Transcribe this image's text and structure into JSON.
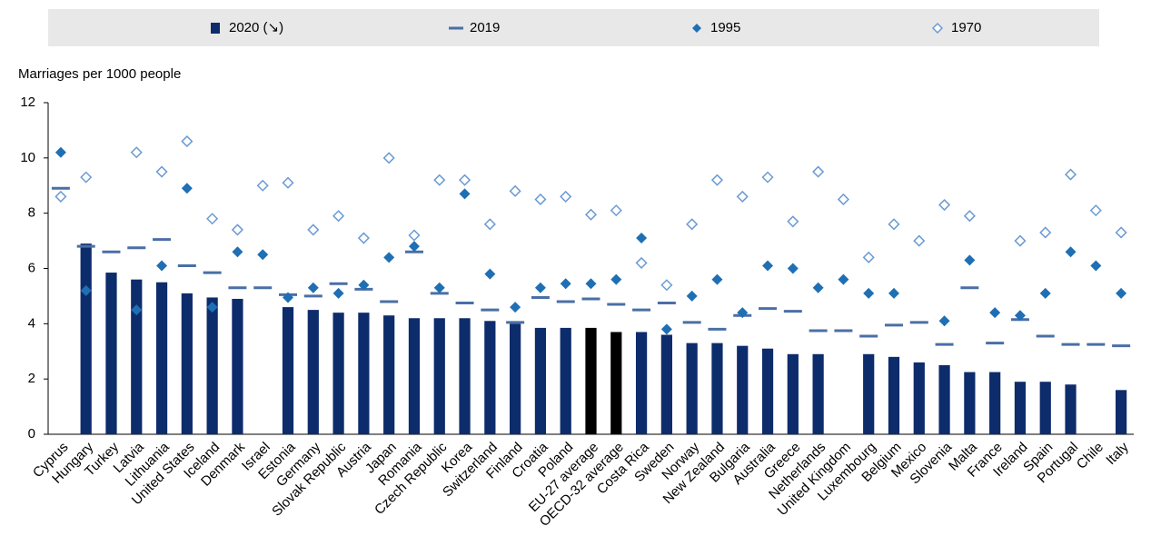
{
  "chart_data": {
    "type": "bar-markers",
    "y_label": "Marriages per 1000 people",
    "categories": [
      "Cyprus",
      "Hungary",
      "Turkey",
      "Latvia",
      "Lithuania",
      "United States",
      "Iceland",
      "Denmark",
      "Israel",
      "Estonia",
      "Germany",
      "Slovak Republic",
      "Austria",
      "Japan",
      "Romania",
      "Czech Republic",
      "Korea",
      "Switzerland",
      "Finland",
      "Croatia",
      "Poland",
      "EU-27 average",
      "OECD-32 average",
      "Costa Rica",
      "Sweden",
      "Norway",
      "New Zealand",
      "Bulgaria",
      "Australia",
      "Greece",
      "Netherlands",
      "United Kingdom",
      "Luxembourg",
      "Belgium",
      "Mexico",
      "Slovenia",
      "Malta",
      "France",
      "Ireland",
      "Spain",
      "Portugal",
      "Chile",
      "Italy"
    ],
    "series": [
      {
        "name": "2020 (↘)",
        "mark": "bar",
        "color": "#0d2c6c",
        "colors": [
          "#0d2c6c",
          "#0d2c6c",
          "#0d2c6c",
          "#0d2c6c",
          "#0d2c6c",
          "#0d2c6c",
          "#0d2c6c",
          "#0d2c6c",
          "#0d2c6c",
          "#0d2c6c",
          "#0d2c6c",
          "#0d2c6c",
          "#0d2c6c",
          "#0d2c6c",
          "#0d2c6c",
          "#0d2c6c",
          "#0d2c6c",
          "#0d2c6c",
          "#0d2c6c",
          "#0d2c6c",
          "#0d2c6c",
          "#000000",
          "#000000",
          "#0d2c6c",
          "#0d2c6c",
          "#0d2c6c",
          "#0d2c6c",
          "#0d2c6c",
          "#0d2c6c",
          "#0d2c6c",
          "#0d2c6c",
          "#0d2c6c",
          "#0d2c6c",
          "#0d2c6c",
          "#0d2c6c",
          "#0d2c6c",
          "#0d2c6c",
          "#0d2c6c",
          "#0d2c6c",
          "#0d2c6c",
          "#0d2c6c",
          "#0d2c6c",
          "#0d2c6c"
        ],
        "values": [
          null,
          6.9,
          5.85,
          5.6,
          5.5,
          5.1,
          4.95,
          4.9,
          null,
          4.6,
          4.5,
          4.4,
          4.4,
          4.3,
          4.2,
          4.2,
          4.2,
          4.1,
          4.0,
          3.85,
          3.85,
          3.85,
          3.7,
          3.7,
          3.6,
          3.3,
          3.3,
          3.2,
          3.1,
          2.9,
          2.9,
          null,
          2.9,
          2.8,
          2.6,
          2.5,
          2.25,
          2.25,
          1.9,
          1.9,
          1.8,
          null,
          1.6
        ]
      },
      {
        "name": "2019",
        "mark": "dash",
        "color": "#4a6fa5",
        "values": [
          8.9,
          6.8,
          6.6,
          6.75,
          7.05,
          6.1,
          5.85,
          5.3,
          5.3,
          5.05,
          5.0,
          5.45,
          5.25,
          4.8,
          6.6,
          5.1,
          4.75,
          4.5,
          4.05,
          4.95,
          4.8,
          4.9,
          4.7,
          4.5,
          4.75,
          4.05,
          3.8,
          4.3,
          4.55,
          4.45,
          3.75,
          3.75,
          3.55,
          3.95,
          4.05,
          3.25,
          5.3,
          3.3,
          4.15,
          3.55,
          3.25,
          3.25,
          3.2
        ]
      },
      {
        "name": "1995",
        "mark": "diamond",
        "color": "#1f6fb4",
        "values": [
          10.2,
          5.2,
          null,
          4.5,
          6.1,
          8.9,
          4.6,
          6.6,
          6.5,
          4.95,
          5.3,
          5.1,
          5.4,
          6.4,
          6.8,
          5.3,
          8.7,
          5.8,
          4.6,
          5.3,
          5.45,
          5.45,
          5.6,
          7.1,
          3.8,
          5.0,
          5.6,
          4.4,
          6.1,
          6.0,
          5.3,
          5.6,
          5.1,
          5.1,
          null,
          4.1,
          6.3,
          4.4,
          4.3,
          5.1,
          6.6,
          6.1,
          5.1
        ]
      },
      {
        "name": "1970",
        "mark": "hollow-diamond",
        "color": "#6b9bd2",
        "values": [
          8.6,
          9.3,
          null,
          10.2,
          9.5,
          10.6,
          7.8,
          7.4,
          9.0,
          9.1,
          7.4,
          7.9,
          7.1,
          10.0,
          7.2,
          9.2,
          9.2,
          7.6,
          8.8,
          8.5,
          8.6,
          7.95,
          8.1,
          6.2,
          5.4,
          7.6,
          9.2,
          8.6,
          9.3,
          7.7,
          9.5,
          8.5,
          6.4,
          7.6,
          7.0,
          8.3,
          7.9,
          null,
          7.0,
          7.3,
          9.4,
          8.1,
          7.3
        ]
      }
    ],
    "ylim": [
      0,
      12
    ],
    "yticks": [
      0,
      2,
      4,
      6,
      8,
      10,
      12
    ],
    "grid": false
  }
}
